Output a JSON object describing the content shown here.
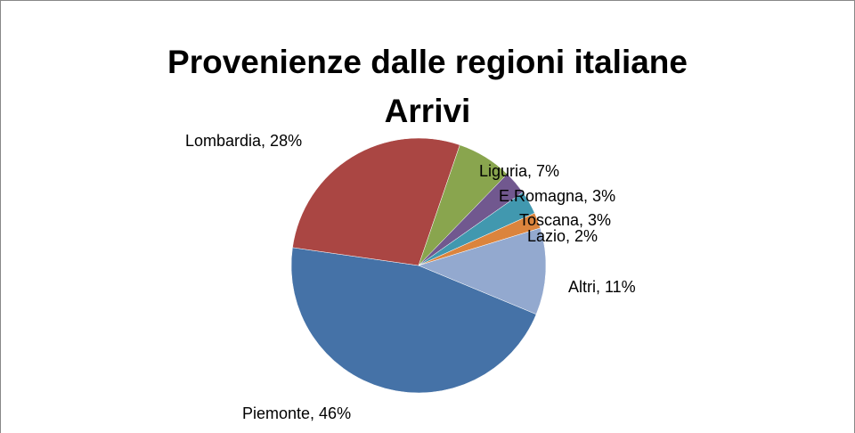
{
  "chart_data": {
    "type": "pie",
    "title": [
      "Provenienze dalle regioni italiane",
      "Arrivi"
    ],
    "values": [
      46,
      28,
      7,
      3,
      3,
      2,
      11
    ],
    "value_labels": [
      "Piemonte, 46%",
      "Lombardia, 28%",
      "Liguria, 7%",
      "E.Romagna, 3%",
      "Toscana, 3%",
      "Lazio, 2%",
      "Altri, 11%"
    ],
    "colors": [
      "#4572a7",
      "#aa4643",
      "#89a54e",
      "#71588f",
      "#4198af",
      "#db843d",
      "#93a9cf"
    ]
  }
}
